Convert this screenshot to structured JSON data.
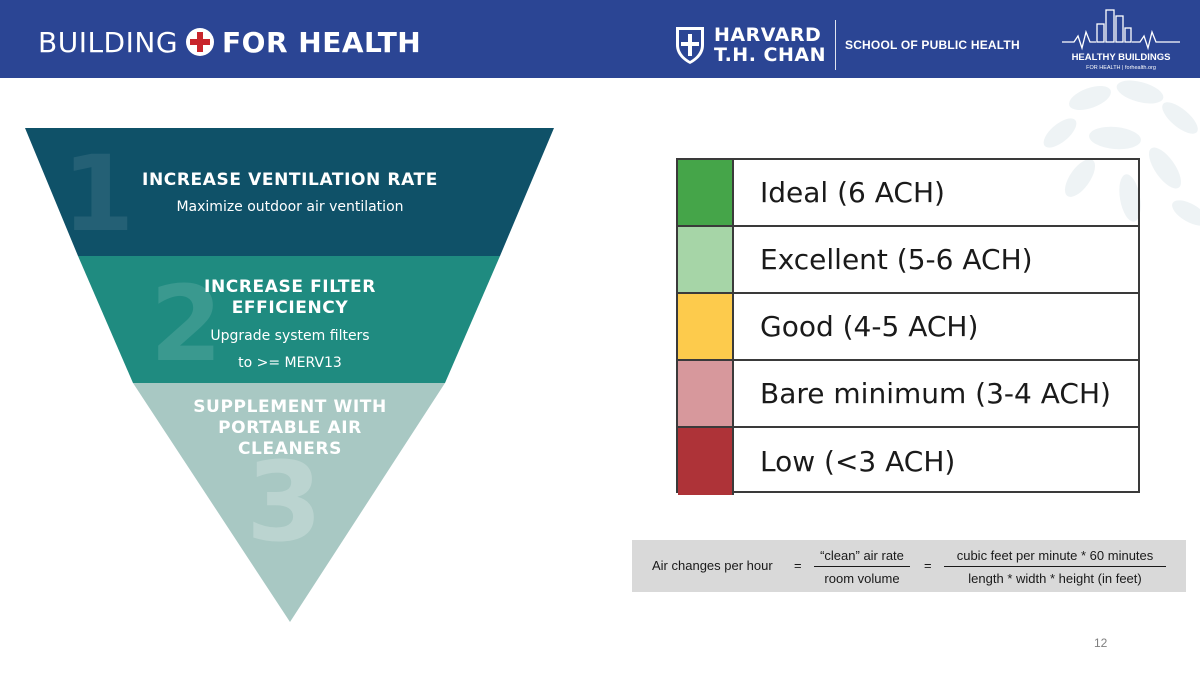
{
  "header": {
    "brand_part1": "BUILDING",
    "brand_part2": "FOR HEALTH",
    "harvard_line1": "HARVARD",
    "harvard_line2": "T.H. CHAN",
    "school": "SCHOOL OF PUBLIC HEALTH",
    "hb_title": "HEALTHY BUILDINGS",
    "hb_sub": "FOR HEALTH  |  forhealth.org",
    "background_color": "#2b4594"
  },
  "pyramid": {
    "tiers": [
      {
        "number": "1",
        "title": "INCREASE VENTILATION RATE",
        "subtitle": "Maximize outdoor air ventilation",
        "color": "#0f5168"
      },
      {
        "number": "2",
        "title_line1": "INCREASE FILTER",
        "title_line2": "EFFICIENCY",
        "subtitle_line1": "Upgrade system filters",
        "subtitle_line2": "to >= MERV13",
        "color": "#1f8b80"
      },
      {
        "number": "3",
        "title_line1": "SUPPLEMENT WITH",
        "title_line2": "PORTABLE AIR",
        "title_line3": "CLEANERS",
        "color": "#a8c8c3"
      }
    ]
  },
  "ach_scale": {
    "rows": [
      {
        "label": "Ideal (6 ACH)",
        "color": "#45a549"
      },
      {
        "label": "Excellent (5-6 ACH)",
        "color": "#a6d5a7"
      },
      {
        "label": "Good (4-5 ACH)",
        "color": "#fdcb4c"
      },
      {
        "label": "Bare minimum (3-4 ACH)",
        "color": "#d7989c"
      },
      {
        "label": "Low (<3 ACH)",
        "color": "#ae3338"
      }
    ]
  },
  "formula": {
    "lhs": "Air changes per hour",
    "eq": "=",
    "frac1_num": "“clean” air rate",
    "frac1_den": "room volume",
    "frac2_num": "cubic feet per minute * 60 minutes",
    "frac2_den": "length * width * height (in feet)"
  },
  "page_number": "12"
}
